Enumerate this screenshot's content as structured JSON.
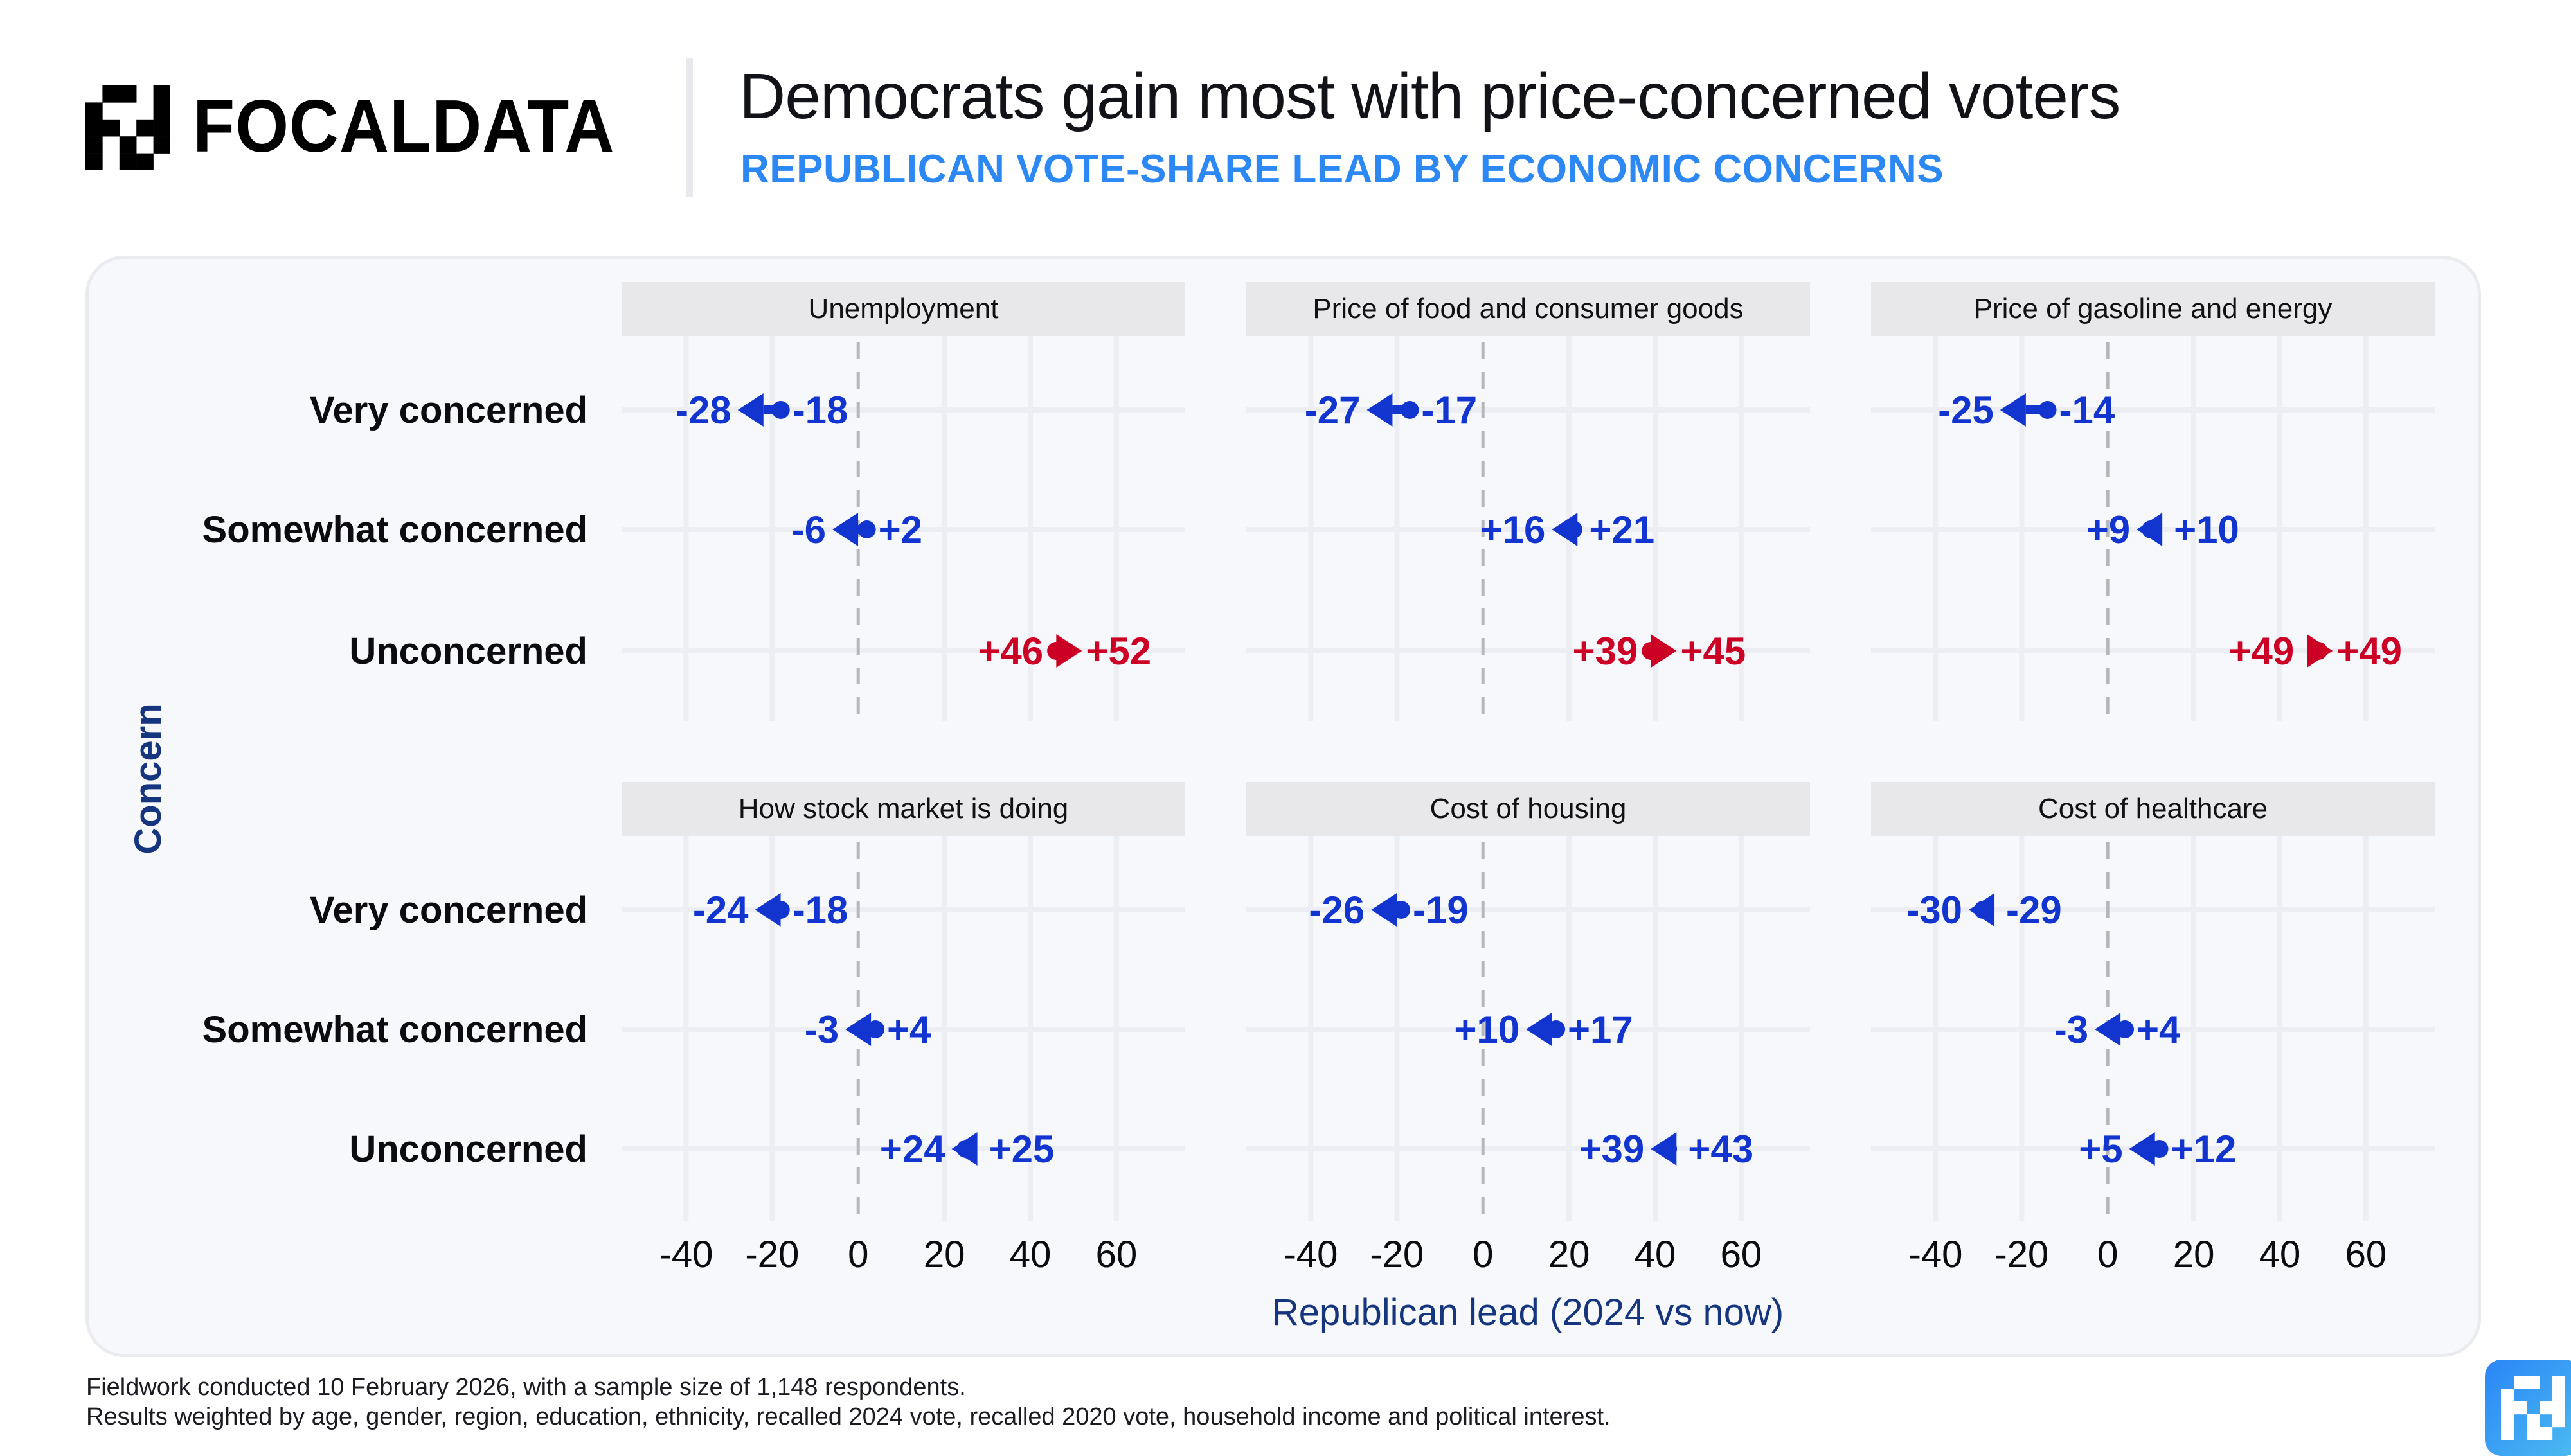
{
  "brand": {
    "name": "FOCALDATA",
    "logo_icon": "focaldata-pixel-logo-icon",
    "logo_cells": [
      [
        0,
        1
      ],
      [
        0,
        2
      ],
      [
        0,
        4
      ],
      [
        1,
        0
      ],
      [
        1,
        4
      ],
      [
        2,
        0
      ],
      [
        2,
        1
      ],
      [
        2,
        3
      ],
      [
        2,
        4
      ],
      [
        3,
        0
      ],
      [
        3,
        2
      ],
      [
        3,
        4
      ],
      [
        4,
        0
      ],
      [
        4,
        2
      ],
      [
        4,
        3
      ]
    ]
  },
  "header": {
    "title": "Democrats gain most with price-concerned voters",
    "subtitle": "REPUBLICAN VOTE-SHARE LEAD BY ECONOMIC CONCERNS"
  },
  "colors": {
    "dem_shift": "#1235cf",
    "rep_shift": "#cc0025",
    "strip_bg": "#e8e8eb",
    "axis_title": "#16357f",
    "subtitle": "#2c88f5"
  },
  "chart_data": {
    "type": "dumbbell-arrow",
    "title": "Democrats gain most with price-concerned voters",
    "subtitle": "REPUBLICAN VOTE-SHARE LEAD BY ECONOMIC CONCERNS",
    "xlabel": "Republican lead (2024 vs now)",
    "ylabel": "Concern",
    "xlim": [
      -55,
      76
    ],
    "xticks": [
      -40,
      -20,
      0,
      20,
      40,
      60
    ],
    "xtick_labels": [
      "-40",
      "-20",
      "0",
      "20",
      "40",
      "60"
    ],
    "reference_line": 0,
    "grid": true,
    "categories": [
      "Very concerned",
      "Somewhat concerned",
      "Unconcerned"
    ],
    "encoding": {
      "circle": "2024 Republican lead",
      "arrow_head": "Republican lead now",
      "color_rule": "red if lead increased (shift toward Republicans), blue if decreased"
    },
    "panels": [
      {
        "title": "Unemployment",
        "rows": [
          {
            "category": "Very concerned",
            "lead_2024": -18,
            "lead_now": -28,
            "label_2024": "-18",
            "label_now": "-28",
            "shift": "dem"
          },
          {
            "category": "Somewhat concerned",
            "lead_2024": 2,
            "lead_now": -6,
            "label_2024": "+2",
            "label_now": "-6",
            "shift": "dem"
          },
          {
            "category": "Unconcerned",
            "lead_2024": 46,
            "lead_now": 52,
            "label_2024": "+46",
            "label_now": "+52",
            "shift": "rep"
          }
        ]
      },
      {
        "title": "Price of food and consumer goods",
        "rows": [
          {
            "category": "Very concerned",
            "lead_2024": -17,
            "lead_now": -27,
            "label_2024": "-17",
            "label_now": "-27",
            "shift": "dem"
          },
          {
            "category": "Somewhat concerned",
            "lead_2024": 21,
            "lead_now": 16,
            "label_2024": "+21",
            "label_now": "+16",
            "shift": "dem"
          },
          {
            "category": "Unconcerned",
            "lead_2024": 39,
            "lead_now": 45,
            "label_2024": "+39",
            "label_now": "+45",
            "shift": "rep"
          }
        ]
      },
      {
        "title": "Price of gasoline and energy",
        "rows": [
          {
            "category": "Very concerned",
            "lead_2024": -14,
            "lead_now": -25,
            "label_2024": "-14",
            "label_now": "-25",
            "shift": "dem"
          },
          {
            "category": "Somewhat concerned",
            "lead_2024": 10,
            "lead_now": 9,
            "label_2024": "+10",
            "label_now": "+9",
            "shift": "dem"
          },
          {
            "category": "Unconcerned",
            "lead_2024": 49,
            "lead_now": 49,
            "label_2024": "+49",
            "label_now": "+49",
            "shift": "rep"
          }
        ]
      },
      {
        "title": "How stock market is doing",
        "rows": [
          {
            "category": "Very concerned",
            "lead_2024": -18,
            "lead_now": -24,
            "label_2024": "-18",
            "label_now": "-24",
            "shift": "dem"
          },
          {
            "category": "Somewhat concerned",
            "lead_2024": 4,
            "lead_now": -3,
            "label_2024": "+4",
            "label_now": "-3",
            "shift": "dem"
          },
          {
            "category": "Unconcerned",
            "lead_2024": 25,
            "lead_now": 24,
            "label_2024": "+25",
            "label_now": "+24",
            "shift": "dem"
          }
        ]
      },
      {
        "title": "Cost of housing",
        "rows": [
          {
            "category": "Very concerned",
            "lead_2024": -19,
            "lead_now": -26,
            "label_2024": "-19",
            "label_now": "-26",
            "shift": "dem"
          },
          {
            "category": "Somewhat concerned",
            "lead_2024": 17,
            "lead_now": 10,
            "label_2024": "+17",
            "label_now": "+10",
            "shift": "dem"
          },
          {
            "category": "Unconcerned",
            "lead_2024": 43,
            "lead_now": 39,
            "label_2024": "+43",
            "label_now": "+39",
            "shift": "dem"
          }
        ]
      },
      {
        "title": "Cost of healthcare",
        "rows": [
          {
            "category": "Very concerned",
            "lead_2024": -29,
            "lead_now": -30,
            "label_2024": "-29",
            "label_now": "-30",
            "shift": "dem"
          },
          {
            "category": "Somewhat concerned",
            "lead_2024": 4,
            "lead_now": -3,
            "label_2024": "+4",
            "label_now": "-3",
            "shift": "dem"
          },
          {
            "category": "Unconcerned",
            "lead_2024": 12,
            "lead_now": 5,
            "label_2024": "+12",
            "label_now": "+5",
            "shift": "dem"
          }
        ]
      }
    ]
  },
  "footer": {
    "line1": "Fieldwork conducted 10 February 2026, with a sample size of 1,148 respondents.",
    "line2": "Results weighted by age, gender, region, education, ethnicity, recalled 2024 vote, recalled 2020 vote, household income and political interest.",
    "corner_logo_icon": "focaldata-app-icon"
  }
}
